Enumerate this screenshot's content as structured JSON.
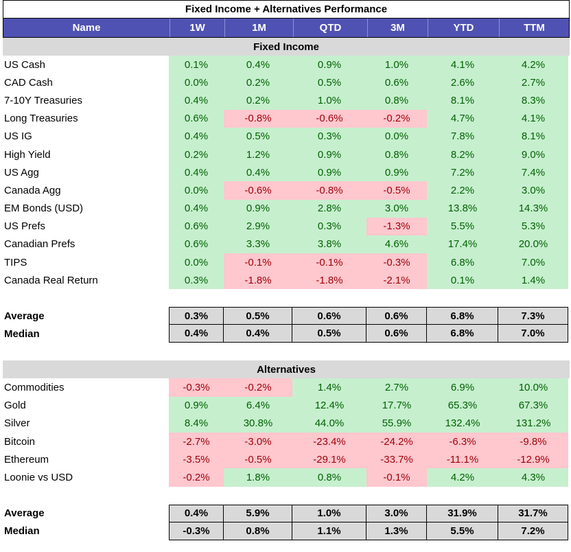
{
  "title": "Fixed Income + Alternatives Performance",
  "columns": [
    "Name",
    "1W",
    "1M",
    "QTD",
    "3M",
    "YTD",
    "TTM"
  ],
  "sections": [
    {
      "name": "Fixed Income",
      "rows": [
        {
          "name": "US Cash",
          "values": [
            "0.1%",
            "0.4%",
            "0.9%",
            "1.0%",
            "4.1%",
            "4.2%"
          ]
        },
        {
          "name": "CAD Cash",
          "values": [
            "0.0%",
            "0.2%",
            "0.5%",
            "0.6%",
            "2.6%",
            "2.7%"
          ]
        },
        {
          "name": "7-10Y Treasuries",
          "values": [
            "0.4%",
            "0.2%",
            "1.0%",
            "0.8%",
            "8.1%",
            "8.3%"
          ]
        },
        {
          "name": "Long Treasuries",
          "values": [
            "0.6%",
            "-0.8%",
            "-0.6%",
            "-0.2%",
            "4.7%",
            "4.1%"
          ]
        },
        {
          "name": "US IG",
          "values": [
            "0.4%",
            "0.5%",
            "0.3%",
            "0.0%",
            "7.8%",
            "8.1%"
          ]
        },
        {
          "name": "High Yield",
          "values": [
            "0.2%",
            "1.2%",
            "0.9%",
            "0.8%",
            "8.2%",
            "9.0%"
          ]
        },
        {
          "name": "US Agg",
          "values": [
            "0.4%",
            "0.4%",
            "0.9%",
            "0.9%",
            "7.2%",
            "7.4%"
          ]
        },
        {
          "name": "Canada Agg",
          "values": [
            "0.0%",
            "-0.6%",
            "-0.8%",
            "-0.5%",
            "2.2%",
            "3.0%"
          ]
        },
        {
          "name": "EM Bonds (USD)",
          "values": [
            "0.4%",
            "0.9%",
            "2.8%",
            "3.0%",
            "13.8%",
            "14.3%"
          ]
        },
        {
          "name": "US Prefs",
          "values": [
            "0.6%",
            "2.9%",
            "0.3%",
            "-1.3%",
            "5.5%",
            "5.3%"
          ]
        },
        {
          "name": "Canadian Prefs",
          "values": [
            "0.6%",
            "3.3%",
            "3.8%",
            "4.6%",
            "17.4%",
            "20.0%"
          ]
        },
        {
          "name": "TIPS",
          "values": [
            "0.0%",
            "-0.1%",
            "-0.1%",
            "-0.3%",
            "6.8%",
            "7.0%"
          ]
        },
        {
          "name": "Canada Real Return",
          "values": [
            "0.3%",
            "-1.8%",
            "-1.8%",
            "-2.1%",
            "0.1%",
            "1.4%"
          ]
        }
      ],
      "stats": [
        {
          "label": "Average",
          "values": [
            "0.3%",
            "0.5%",
            "0.6%",
            "0.6%",
            "6.8%",
            "7.3%"
          ]
        },
        {
          "label": "Median",
          "values": [
            "0.4%",
            "0.4%",
            "0.5%",
            "0.6%",
            "6.8%",
            "7.0%"
          ]
        }
      ]
    },
    {
      "name": "Alternatives",
      "rows": [
        {
          "name": "Commodities",
          "values": [
            "-0.3%",
            "-0.2%",
            "1.4%",
            "2.7%",
            "6.9%",
            "10.0%"
          ]
        },
        {
          "name": "Gold",
          "values": [
            "0.9%",
            "6.4%",
            "12.4%",
            "17.7%",
            "65.3%",
            "67.3%"
          ]
        },
        {
          "name": "Silver",
          "values": [
            "8.4%",
            "30.8%",
            "44.0%",
            "55.9%",
            "132.4%",
            "131.2%"
          ]
        },
        {
          "name": "Bitcoin",
          "values": [
            "-2.7%",
            "-3.0%",
            "-23.4%",
            "-24.2%",
            "-6.3%",
            "-9.8%"
          ]
        },
        {
          "name": "Ethereum",
          "values": [
            "-3.5%",
            "-0.5%",
            "-29.1%",
            "-33.7%",
            "-11.1%",
            "-12.9%"
          ]
        },
        {
          "name": "Loonie vs USD",
          "values": [
            "-0.2%",
            "1.8%",
            "0.8%",
            "-0.1%",
            "4.2%",
            "4.3%"
          ]
        }
      ],
      "stats": [
        {
          "label": "Average",
          "values": [
            "0.4%",
            "5.9%",
            "1.0%",
            "3.0%",
            "31.9%",
            "31.7%"
          ]
        },
        {
          "label": "Median",
          "values": [
            "-0.3%",
            "0.8%",
            "1.1%",
            "1.3%",
            "5.5%",
            "7.2%"
          ]
        }
      ]
    }
  ],
  "colors": {
    "header_bg": "#4f52b2",
    "positive_bg": "#c6efce",
    "positive_text": "#006100",
    "negative_bg": "#ffc7ce",
    "negative_text": "#9c0006",
    "section_bg": "#d9d9d9"
  }
}
